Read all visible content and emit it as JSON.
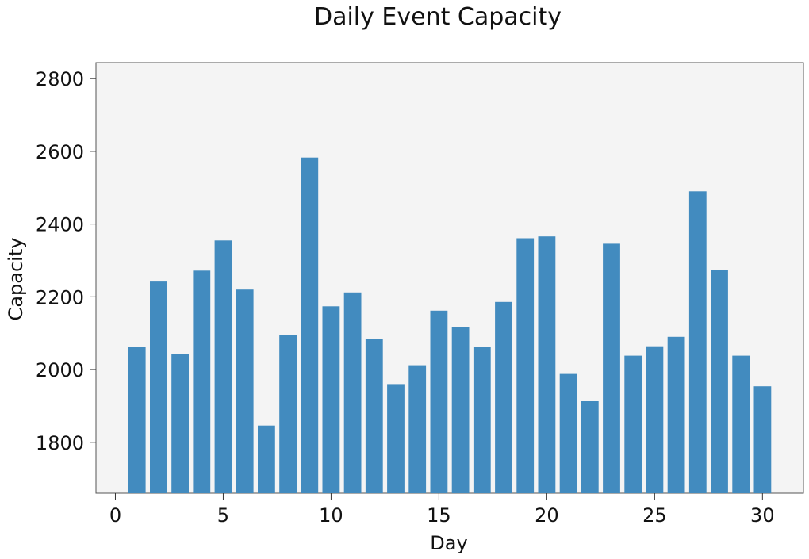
{
  "chart_data": {
    "type": "bar",
    "title": "Daily Event Capacity",
    "xlabel": "Day",
    "ylabel": "Capacity",
    "x": [
      1,
      2,
      3,
      4,
      5,
      6,
      7,
      8,
      9,
      10,
      11,
      12,
      13,
      14,
      15,
      16,
      17,
      18,
      19,
      20,
      21,
      22,
      23,
      24,
      25,
      26,
      27,
      28,
      29,
      30
    ],
    "values": [
      2062,
      2242,
      2042,
      2272,
      2355,
      2220,
      1846,
      2096,
      2583,
      2174,
      2212,
      2085,
      1960,
      2012,
      2162,
      2118,
      2062,
      2186,
      2361,
      2366,
      1988,
      1913,
      2346,
      2038,
      2064,
      2090,
      2490,
      2274,
      2038,
      1954
    ],
    "xlim": [
      -0.9,
      31.9
    ],
    "ylim": [
      1660,
      2844
    ],
    "xticks": [
      "0",
      "5",
      "10",
      "15",
      "20",
      "25",
      "30"
    ],
    "yticks": [
      "1800",
      "2000",
      "2200",
      "2400",
      "2600",
      "2800"
    ],
    "grid": false,
    "bar_color": "#428bbf",
    "plot_background": "#f4f4f4"
  }
}
